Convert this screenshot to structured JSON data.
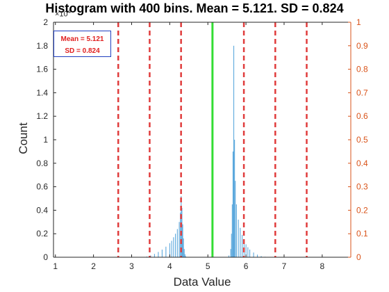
{
  "chart_data": {
    "type": "bar",
    "title": "Histogram with 400 bins.  Mean = 5.121.  SD = 0.824",
    "xlabel": "Data Value",
    "ylabel": "Count",
    "y_exponent_label": "×10",
    "xlim": [
      0.95,
      8.75
    ],
    "ylim": [
      0,
      20000
    ],
    "y2lim": [
      0,
      1
    ],
    "xticks": [
      "1",
      "2",
      "3",
      "4",
      "5",
      "6",
      "7",
      "8"
    ],
    "yticks": [
      "0",
      "0.2",
      "0.4",
      "0.6",
      "0.8",
      "1",
      "1.2",
      "1.4",
      "1.6",
      "1.8",
      "2"
    ],
    "y2ticks": [
      "0",
      "0.1",
      "0.2",
      "0.3",
      "0.4",
      "0.5",
      "0.6",
      "0.7",
      "0.8",
      "0.9",
      "1"
    ],
    "grid": false,
    "legend_text": [
      "Mean = 5.121",
      "SD = 0.824"
    ],
    "legend_position": "top-left",
    "bin_width": 0.0195,
    "histogram": [
      {
        "x": 3.4,
        "y": 60
      },
      {
        "x": 3.5,
        "y": 150
      },
      {
        "x": 3.6,
        "y": 280
      },
      {
        "x": 3.7,
        "y": 450
      },
      {
        "x": 3.8,
        "y": 650
      },
      {
        "x": 3.9,
        "y": 900
      },
      {
        "x": 4.0,
        "y": 1200
      },
      {
        "x": 4.05,
        "y": 1400
      },
      {
        "x": 4.1,
        "y": 1700
      },
      {
        "x": 4.15,
        "y": 2000
      },
      {
        "x": 4.2,
        "y": 2400
      },
      {
        "x": 4.25,
        "y": 3000
      },
      {
        "x": 4.28,
        "y": 3800
      },
      {
        "x": 4.3,
        "y": 5200
      },
      {
        "x": 4.32,
        "y": 4200
      },
      {
        "x": 4.34,
        "y": 2800
      },
      {
        "x": 4.36,
        "y": 1600
      },
      {
        "x": 4.38,
        "y": 700
      },
      {
        "x": 4.4,
        "y": 250
      },
      {
        "x": 4.42,
        "y": 80
      },
      {
        "x": 5.55,
        "y": 150
      },
      {
        "x": 5.6,
        "y": 700
      },
      {
        "x": 5.62,
        "y": 2000
      },
      {
        "x": 5.64,
        "y": 4500
      },
      {
        "x": 5.66,
        "y": 9000
      },
      {
        "x": 5.68,
        "y": 18000
      },
      {
        "x": 5.7,
        "y": 10000
      },
      {
        "x": 5.72,
        "y": 6500
      },
      {
        "x": 5.75,
        "y": 4500
      },
      {
        "x": 5.8,
        "y": 3200
      },
      {
        "x": 5.85,
        "y": 2500
      },
      {
        "x": 5.9,
        "y": 1900
      },
      {
        "x": 5.95,
        "y": 1500
      },
      {
        "x": 6.0,
        "y": 1100
      },
      {
        "x": 6.05,
        "y": 850
      },
      {
        "x": 6.1,
        "y": 650
      },
      {
        "x": 6.2,
        "y": 400
      },
      {
        "x": 6.3,
        "y": 220
      },
      {
        "x": 6.4,
        "y": 100
      },
      {
        "x": 6.5,
        "y": 40
      }
    ],
    "mean_line": {
      "x": 5.121,
      "color": "#33dd33"
    },
    "sd_lines": {
      "x": [
        2.649,
        3.473,
        4.297,
        5.945,
        6.769,
        7.593
      ],
      "color": "#e03c3c"
    },
    "bar_color": "#5aa7dc",
    "axis_color": "#262626",
    "right_axis_color": "#d95319"
  }
}
